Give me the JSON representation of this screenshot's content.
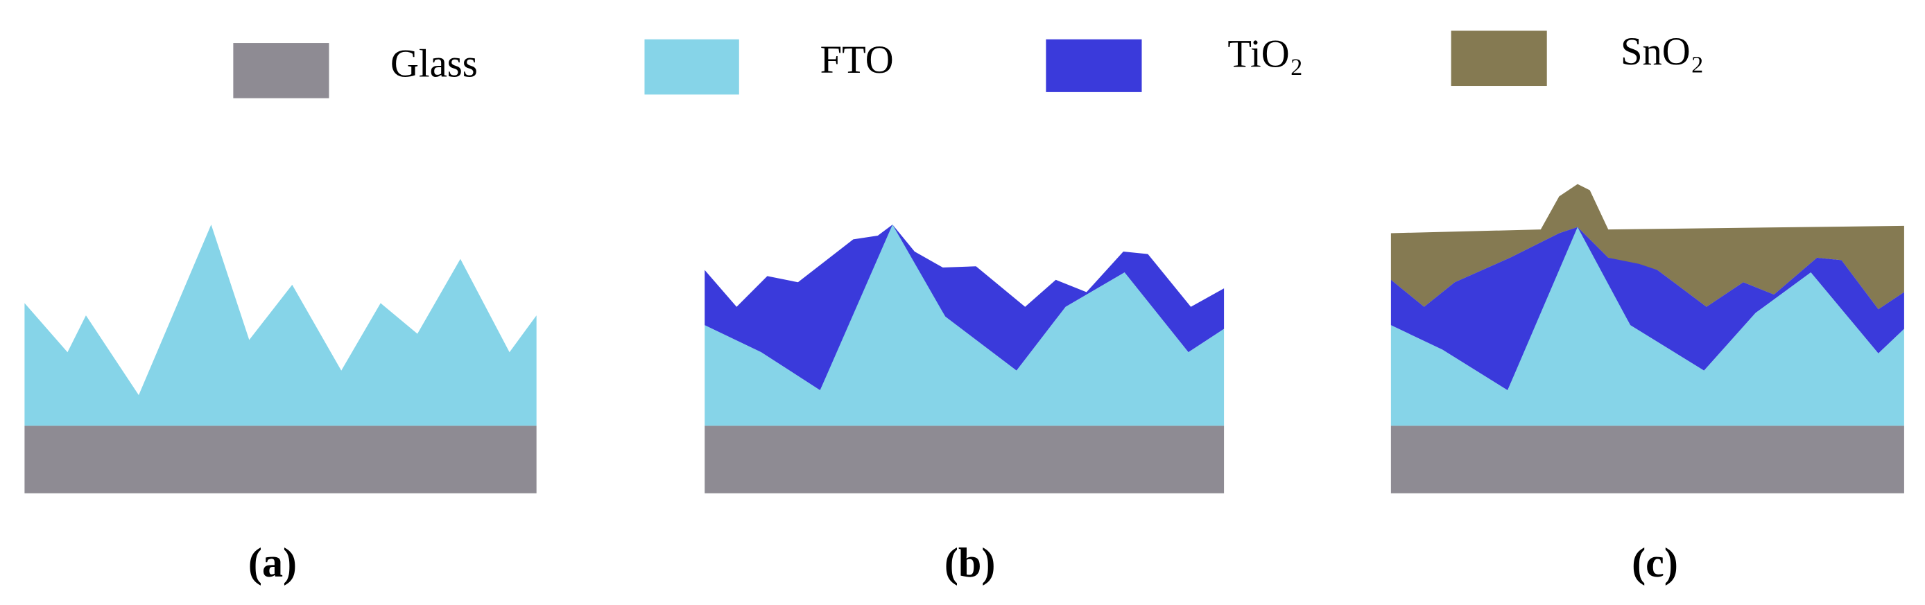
{
  "legend": [
    {
      "label": "Glass"
    },
    {
      "label": "FTO"
    },
    {
      "label": "TiO₂"
    },
    {
      "label": "SnO₂"
    }
  ],
  "panels": [
    {
      "label": "(a)"
    },
    {
      "label": "(b)"
    },
    {
      "label": "(c)"
    }
  ]
}
